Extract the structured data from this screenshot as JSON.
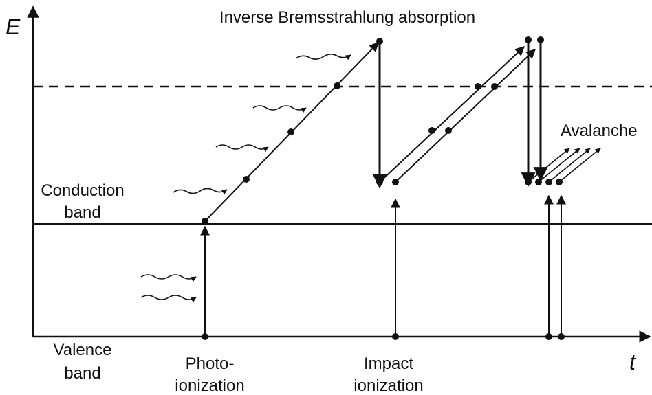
{
  "axes": {
    "y_label": "E",
    "x_label": "t"
  },
  "title": "Inverse Bremsstrahlung absorption",
  "labels": {
    "conduction_band": [
      "Conduction",
      "band"
    ],
    "valence_band": [
      "Valence",
      "band"
    ],
    "photo_ionization": [
      "Photo-",
      "ionization"
    ],
    "impact_ionization": [
      "Impact",
      "ionization"
    ],
    "avalanche": "Avalanche"
  }
}
